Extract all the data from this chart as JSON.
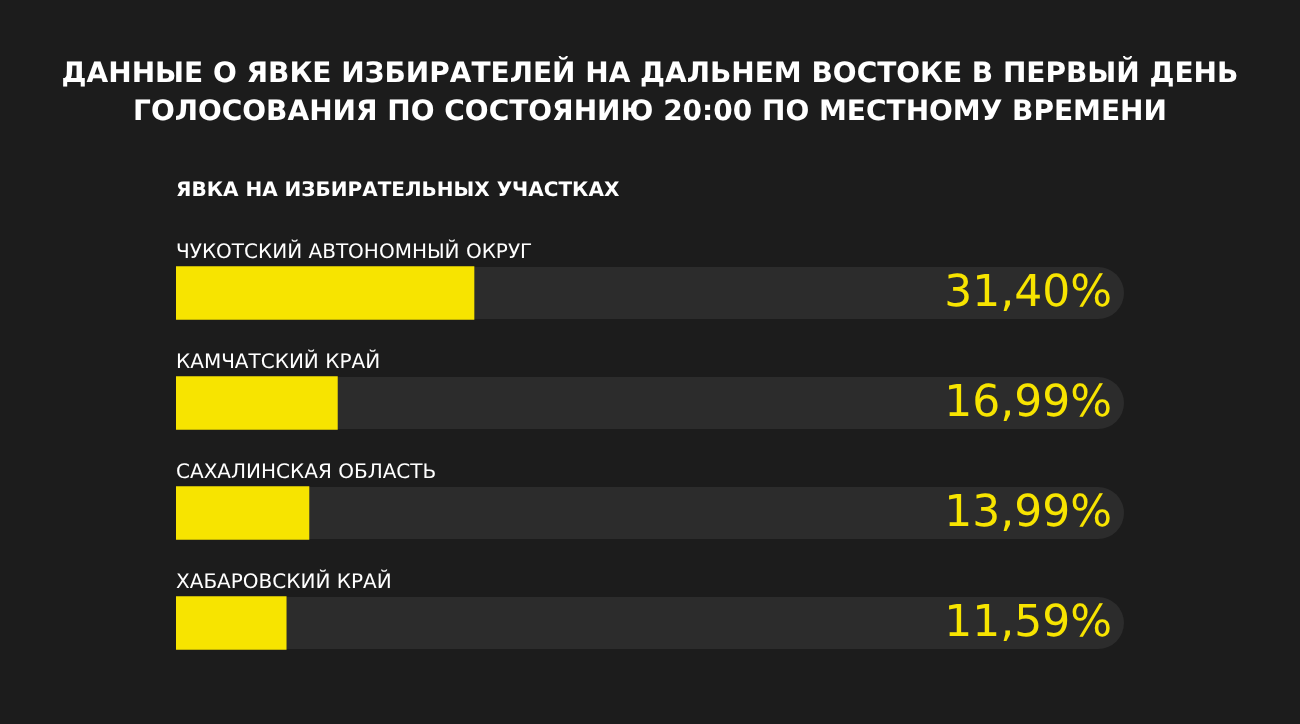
{
  "chart_data": {
    "type": "bar",
    "orientation": "horizontal",
    "title": "ДАННЫЕ О ЯВКЕ ИЗБИРАТЕЛЕЙ НА ДАЛЬНЕМ ВОСТОКЕ В ПЕРВЫЙ ДЕНЬ ГОЛОСОВАНИЯ ПО СОСТОЯНИЮ 20:00 ПО МЕСТНОМУ ВРЕМЕНИ",
    "subtitle": "ЯВКА НА ИЗБИРАТЕЛЬНЫХ УЧАСТКАХ",
    "categories": [
      "ЧУКОТСКИЙ АВТОНОМНЫЙ ОКРУГ",
      "КАМЧАТСКИЙ КРАЙ",
      "САХАЛИНСКАЯ ОБЛАСТЬ",
      "ХАБАРОВСКИЙ КРАЙ"
    ],
    "values": [
      31.4,
      16.99,
      13.99,
      11.59
    ],
    "value_labels": [
      "31,40%",
      "16,99%",
      "13,99%",
      "11,59%"
    ],
    "color": "#f7e400",
    "xlim": [
      0,
      100
    ]
  }
}
